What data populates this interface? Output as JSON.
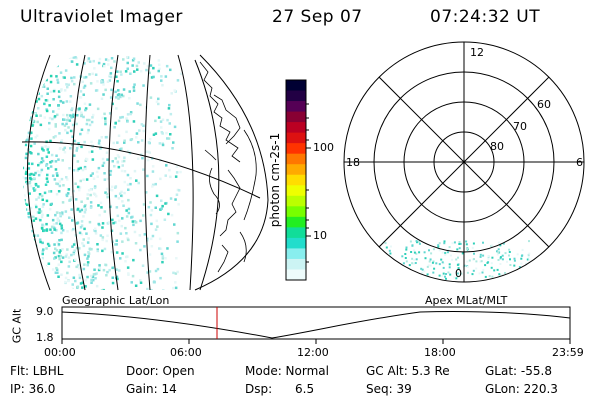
{
  "header": {
    "title": "Ultraviolet Imager",
    "date": "27 Sep 07",
    "time": "07:24:32 UT"
  },
  "colorbar": {
    "unit_label": "photon cm-2s-1",
    "ticks": [
      "100",
      "10"
    ],
    "colors": [
      "#000033",
      "#220044",
      "#550055",
      "#880033",
      "#bb0022",
      "#dd1111",
      "#ff3300",
      "#ff7700",
      "#ffaa00",
      "#ffdd00",
      "#eeff00",
      "#bbff00",
      "#77ff00",
      "#22ee22",
      "#11dd99",
      "#22ddcc",
      "#88eeee",
      "#ccf4f4",
      "#eefcfc"
    ]
  },
  "polar_plot": {
    "mlt_labels": {
      "top": "12",
      "left": "18",
      "right": "6",
      "bottom": "0"
    },
    "lat_labels": [
      "60",
      "70",
      "80"
    ]
  },
  "timeline": {
    "axis_label": "GC Alt",
    "y_ticks": [
      "9.0",
      "1.8"
    ],
    "left_title": "Geographic Lat/Lon",
    "right_title": "Apex MLat/MLT",
    "x_ticks": [
      "00:00",
      "06:00",
      "12:00",
      "18:00",
      "23:59"
    ],
    "cursor_time": "07:24:32",
    "marker_color": "#cc0000"
  },
  "info": {
    "row1": [
      {
        "key": "flt",
        "text": "Flt: LBHL"
      },
      {
        "key": "door",
        "text": "Door: Open"
      },
      {
        "key": "mode",
        "text": "Mode: Normal"
      },
      {
        "key": "gcalt",
        "text": "GC Alt: 5.3 Re"
      },
      {
        "key": "glat",
        "text": "GLat: -55.8"
      }
    ],
    "row2": [
      {
        "key": "ip",
        "text": "IP: 36.0"
      },
      {
        "key": "gain",
        "text": "Gain: 14"
      },
      {
        "key": "dsp",
        "text": "Dsp:      6.5"
      },
      {
        "key": "seq",
        "text": "Seq: 39"
      },
      {
        "key": "glon",
        "text": "GLon: 220.3"
      }
    ]
  }
}
